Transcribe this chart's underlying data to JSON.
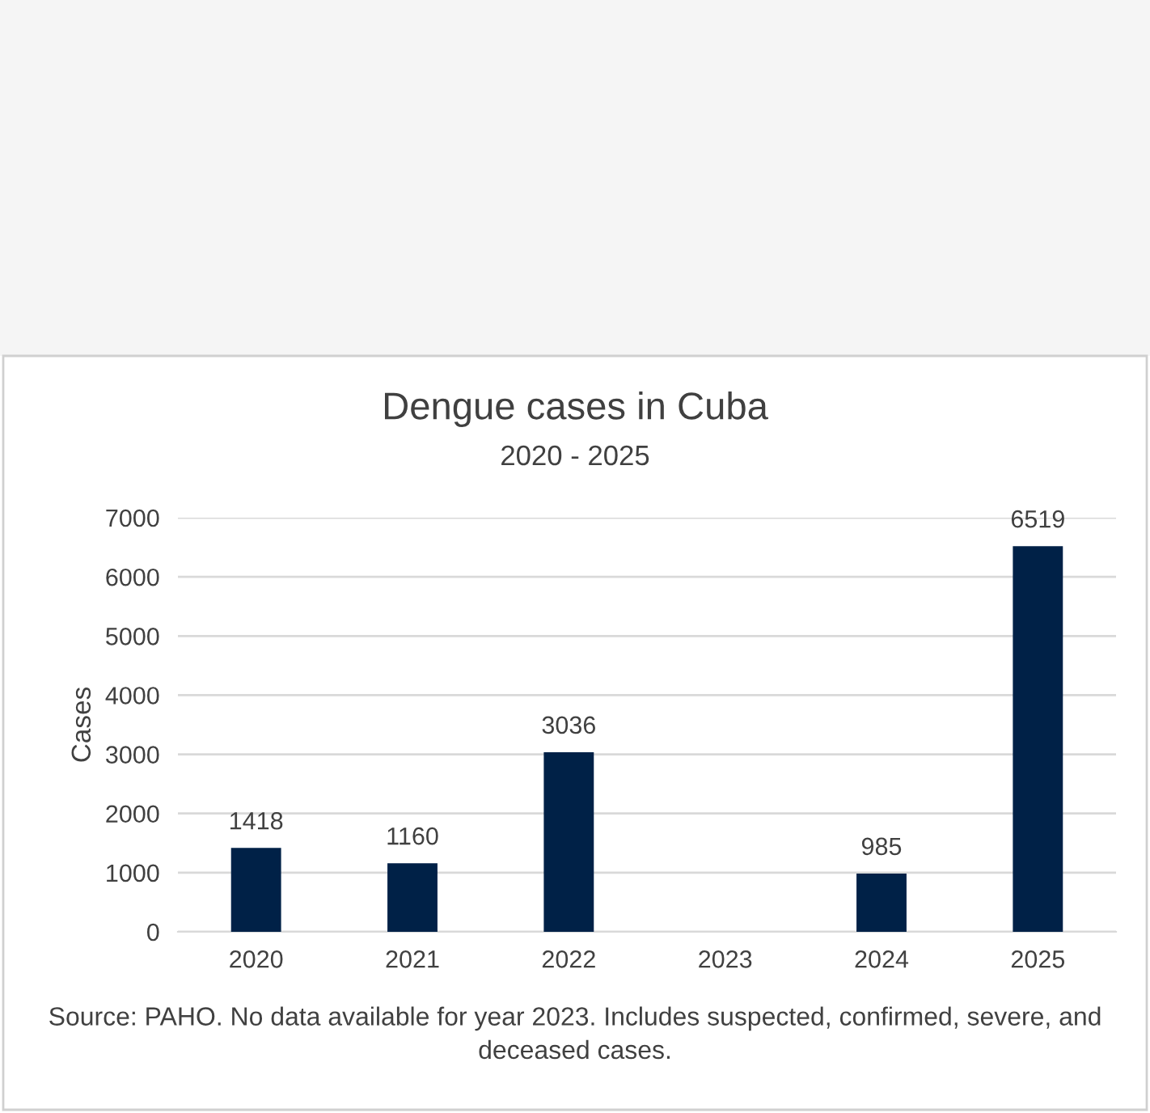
{
  "chart_data": {
    "type": "bar",
    "title": "Dengue cases in Cuba",
    "subtitle": "2020 - 2025",
    "ylabel": "Cases",
    "categories": [
      "2020",
      "2021",
      "2022",
      "2023",
      "2024",
      "2025"
    ],
    "values": [
      1418,
      1160,
      3036,
      null,
      985,
      6519
    ],
    "color": "#002147",
    "ylim": [
      0,
      7000
    ],
    "yticks": [
      0,
      1000,
      2000,
      3000,
      4000,
      5000,
      6000,
      7000
    ],
    "grid": "y",
    "data_labels": true,
    "annotations": [
      "Source: PAHO. No data available for year 2023. Includes suspected, confirmed, severe, and deceased cases."
    ]
  }
}
